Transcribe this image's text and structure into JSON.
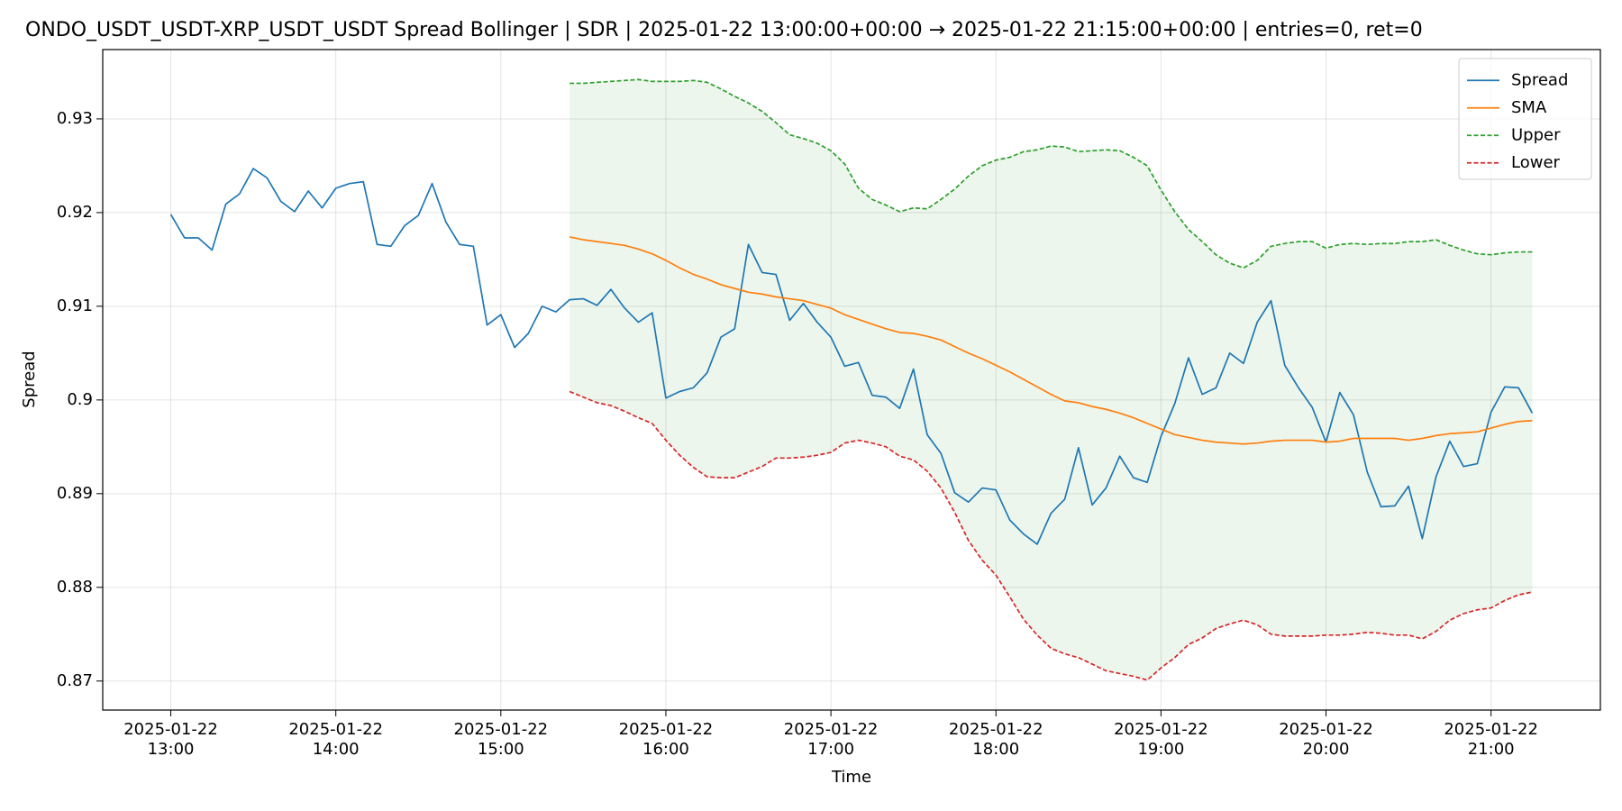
{
  "chart_data": {
    "type": "line",
    "title": "ONDO_USDT_USDT-XRP_USDT_USDT Spread Bollinger  | SDR | 2025-01-22 13:00:00+00:00 → 2025-01-22 21:15:00+00:00 | entries=0, ret=0",
    "xlabel": "Time",
    "ylabel": "Spread",
    "x": [
      "2025-01-22 13:00",
      "2025-01-22 13:05",
      "2025-01-22 13:10",
      "2025-01-22 13:15",
      "2025-01-22 13:20",
      "2025-01-22 13:25",
      "2025-01-22 13:30",
      "2025-01-22 13:35",
      "2025-01-22 13:40",
      "2025-01-22 13:45",
      "2025-01-22 13:50",
      "2025-01-22 13:55",
      "2025-01-22 14:00",
      "2025-01-22 14:05",
      "2025-01-22 14:10",
      "2025-01-22 14:15",
      "2025-01-22 14:20",
      "2025-01-22 14:25",
      "2025-01-22 14:30",
      "2025-01-22 14:35",
      "2025-01-22 14:40",
      "2025-01-22 14:45",
      "2025-01-22 14:50",
      "2025-01-22 14:55",
      "2025-01-22 15:00",
      "2025-01-22 15:05",
      "2025-01-22 15:10",
      "2025-01-22 15:15",
      "2025-01-22 15:20",
      "2025-01-22 15:25",
      "2025-01-22 15:30",
      "2025-01-22 15:35",
      "2025-01-22 15:40",
      "2025-01-22 15:45",
      "2025-01-22 15:50",
      "2025-01-22 15:55",
      "2025-01-22 16:00",
      "2025-01-22 16:05",
      "2025-01-22 16:10",
      "2025-01-22 16:15",
      "2025-01-22 16:20",
      "2025-01-22 16:25",
      "2025-01-22 16:30",
      "2025-01-22 16:35",
      "2025-01-22 16:40",
      "2025-01-22 16:45",
      "2025-01-22 16:50",
      "2025-01-22 16:55",
      "2025-01-22 17:00",
      "2025-01-22 17:05",
      "2025-01-22 17:10",
      "2025-01-22 17:15",
      "2025-01-22 17:20",
      "2025-01-22 17:25",
      "2025-01-22 17:30",
      "2025-01-22 17:35",
      "2025-01-22 17:40",
      "2025-01-22 17:45",
      "2025-01-22 17:50",
      "2025-01-22 17:55",
      "2025-01-22 18:00",
      "2025-01-22 18:05",
      "2025-01-22 18:10",
      "2025-01-22 18:15",
      "2025-01-22 18:20",
      "2025-01-22 18:25",
      "2025-01-22 18:30",
      "2025-01-22 18:35",
      "2025-01-22 18:40",
      "2025-01-22 18:45",
      "2025-01-22 18:50",
      "2025-01-22 18:55",
      "2025-01-22 19:00",
      "2025-01-22 19:05",
      "2025-01-22 19:10",
      "2025-01-22 19:15",
      "2025-01-22 19:20",
      "2025-01-22 19:25",
      "2025-01-22 19:30",
      "2025-01-22 19:35",
      "2025-01-22 19:40",
      "2025-01-22 19:45",
      "2025-01-22 19:50",
      "2025-01-22 19:55",
      "2025-01-22 20:00",
      "2025-01-22 20:05",
      "2025-01-22 20:10",
      "2025-01-22 20:15",
      "2025-01-22 20:20",
      "2025-01-22 20:25",
      "2025-01-22 20:30",
      "2025-01-22 20:35",
      "2025-01-22 20:40",
      "2025-01-22 20:45",
      "2025-01-22 20:50",
      "2025-01-22 20:55",
      "2025-01-22 21:00",
      "2025-01-22 21:05",
      "2025-01-22 21:10",
      "2025-01-22 21:15"
    ],
    "series": [
      {
        "name": "Spread",
        "color": "#1f77b4",
        "style": "solid",
        "values": [
          0.9198,
          0.9173,
          0.9173,
          0.916,
          0.9209,
          0.922,
          0.9247,
          0.9237,
          0.9212,
          0.9201,
          0.9223,
          0.9205,
          0.9226,
          0.9231,
          0.9233,
          0.9166,
          0.9164,
          0.9186,
          0.9197,
          0.9231,
          0.919,
          0.9166,
          0.9164,
          0.908,
          0.9091,
          0.9056,
          0.9071,
          0.91,
          0.9094,
          0.9107,
          0.9108,
          0.9101,
          0.9118,
          0.9098,
          0.9083,
          0.9093,
          0.9002,
          0.9009,
          0.9013,
          0.9029,
          0.9067,
          0.9076,
          0.9166,
          0.9136,
          0.9134,
          0.9085,
          0.9103,
          0.9083,
          0.9067,
          0.9036,
          0.904,
          0.9005,
          0.9003,
          0.8991,
          0.9033,
          0.8963,
          0.8943,
          0.8901,
          0.8891,
          0.8906,
          0.8904,
          0.8872,
          0.8857,
          0.8846,
          0.8879,
          0.8894,
          0.8949,
          0.8888,
          0.8906,
          0.894,
          0.8917,
          0.8912,
          0.8961,
          0.8996,
          0.9045,
          0.9006,
          0.9013,
          0.905,
          0.9039,
          0.9083,
          0.9106,
          0.9037,
          0.9013,
          0.8992,
          0.8955,
          0.9008,
          0.8984,
          0.8923,
          0.8886,
          0.8887,
          0.8908,
          0.8852,
          0.8918,
          0.8956,
          0.8929,
          0.8932,
          0.8987,
          0.9014,
          0.9013,
          0.8986
        ]
      },
      {
        "name": "SMA",
        "color": "#ff7f0e",
        "style": "solid",
        "values": [
          null,
          null,
          null,
          null,
          null,
          null,
          null,
          null,
          null,
          null,
          null,
          null,
          null,
          null,
          null,
          null,
          null,
          null,
          null,
          null,
          null,
          null,
          null,
          null,
          null,
          null,
          null,
          null,
          null,
          0.9174,
          0.9171,
          0.9169,
          0.9167,
          0.9165,
          0.9161,
          0.9156,
          0.9149,
          0.9141,
          0.9134,
          0.9129,
          0.9123,
          0.9119,
          0.9115,
          0.9113,
          0.911,
          0.9108,
          0.9106,
          0.9102,
          0.9098,
          0.9091,
          0.9086,
          0.9081,
          0.9076,
          0.9072,
          0.9071,
          0.9068,
          0.9064,
          0.9057,
          0.905,
          0.9044,
          0.9037,
          0.903,
          0.9022,
          0.9014,
          0.9006,
          0.8999,
          0.8997,
          0.8993,
          0.899,
          0.8986,
          0.8981,
          0.8975,
          0.8969,
          0.8963,
          0.896,
          0.8957,
          0.8955,
          0.8954,
          0.8953,
          0.8954,
          0.8956,
          0.8957,
          0.8957,
          0.8957,
          0.8955,
          0.8956,
          0.8959,
          0.8959,
          0.8959,
          0.8959,
          0.8957,
          0.8959,
          0.8962,
          0.8964,
          0.8965,
          0.8966,
          0.897,
          0.8974,
          0.8977,
          0.8978
        ]
      },
      {
        "name": "Upper",
        "color": "#2ca02c",
        "style": "dashed",
        "values": [
          null,
          null,
          null,
          null,
          null,
          null,
          null,
          null,
          null,
          null,
          null,
          null,
          null,
          null,
          null,
          null,
          null,
          null,
          null,
          null,
          null,
          null,
          null,
          null,
          null,
          null,
          null,
          null,
          null,
          0.9338,
          0.9338,
          0.9339,
          0.934,
          0.9341,
          0.9342,
          0.934,
          0.934,
          0.934,
          0.9341,
          0.9339,
          0.9332,
          0.9324,
          0.9317,
          0.9308,
          0.9296,
          0.9283,
          0.9279,
          0.9274,
          0.9266,
          0.9252,
          0.9226,
          0.9214,
          0.9208,
          0.9201,
          0.9205,
          0.9204,
          0.9214,
          0.9225,
          0.9239,
          0.925,
          0.9256,
          0.9259,
          0.9265,
          0.9267,
          0.9271,
          0.927,
          0.9265,
          0.9266,
          0.9267,
          0.9266,
          0.9259,
          0.925,
          0.9224,
          0.9201,
          0.9182,
          0.9169,
          0.9155,
          0.9146,
          0.9141,
          0.9149,
          0.9164,
          0.9167,
          0.9169,
          0.9169,
          0.9162,
          0.9166,
          0.9167,
          0.9166,
          0.9167,
          0.9167,
          0.9169,
          0.9169,
          0.9171,
          0.9165,
          0.916,
          0.9156,
          0.9155,
          0.9157,
          0.9158,
          0.9158
        ]
      },
      {
        "name": "Lower",
        "color": "#d62728",
        "style": "dashed",
        "values": [
          null,
          null,
          null,
          null,
          null,
          null,
          null,
          null,
          null,
          null,
          null,
          null,
          null,
          null,
          null,
          null,
          null,
          null,
          null,
          null,
          null,
          null,
          null,
          null,
          null,
          null,
          null,
          null,
          null,
          0.9009,
          0.9003,
          0.8997,
          0.8994,
          0.8988,
          0.8981,
          0.8975,
          0.8957,
          0.8941,
          0.8928,
          0.8918,
          0.8917,
          0.8917,
          0.8923,
          0.8929,
          0.8938,
          0.8938,
          0.8939,
          0.8941,
          0.8944,
          0.8954,
          0.8957,
          0.8954,
          0.895,
          0.894,
          0.8936,
          0.8924,
          0.8906,
          0.888,
          0.885,
          0.8829,
          0.8813,
          0.879,
          0.8766,
          0.8749,
          0.8735,
          0.8729,
          0.8725,
          0.8718,
          0.8711,
          0.8708,
          0.8705,
          0.8701,
          0.8714,
          0.8725,
          0.8739,
          0.8746,
          0.8756,
          0.8761,
          0.8765,
          0.876,
          0.875,
          0.8748,
          0.8748,
          0.8748,
          0.8749,
          0.8749,
          0.875,
          0.8752,
          0.8751,
          0.8749,
          0.8749,
          0.8745,
          0.8753,
          0.8765,
          0.8772,
          0.8776,
          0.8778,
          0.8786,
          0.8792,
          0.8795
        ]
      }
    ],
    "band_fill": {
      "upper": "Upper",
      "lower": "Lower",
      "color": "#2ca02c"
    },
    "ylim": [
      0.8669,
      0.9374
    ],
    "yticks": [
      0.87,
      0.88,
      0.89,
      0.9,
      0.91,
      0.92,
      0.93
    ],
    "xticks": [
      {
        "value": "2025-01-22 13:00",
        "label": "2025-01-22\n13:00"
      },
      {
        "value": "2025-01-22 14:00",
        "label": "2025-01-22\n14:00"
      },
      {
        "value": "2025-01-22 15:00",
        "label": "2025-01-22\n15:00"
      },
      {
        "value": "2025-01-22 16:00",
        "label": "2025-01-22\n16:00"
      },
      {
        "value": "2025-01-22 17:00",
        "label": "2025-01-22\n17:00"
      },
      {
        "value": "2025-01-22 18:00",
        "label": "2025-01-22\n18:00"
      },
      {
        "value": "2025-01-22 19:00",
        "label": "2025-01-22\n19:00"
      },
      {
        "value": "2025-01-22 20:00",
        "label": "2025-01-22\n20:00"
      },
      {
        "value": "2025-01-22 21:00",
        "label": "2025-01-22\n21:00"
      }
    ],
    "grid": true,
    "legend": "upper right"
  }
}
